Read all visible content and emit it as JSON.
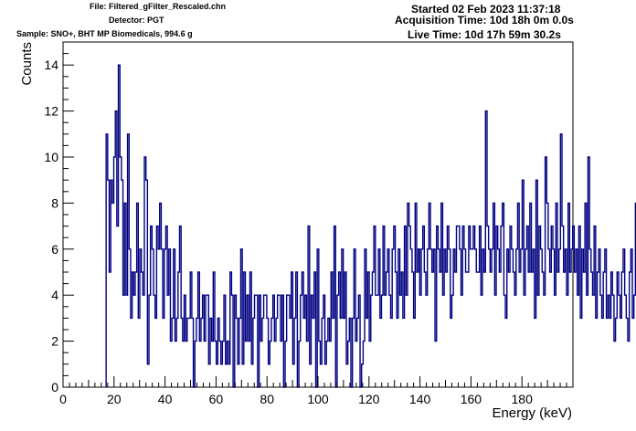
{
  "header": {
    "file": "File: Filtered_gFilter_Rescaled.chn",
    "detector": "Detector: PGT",
    "sample": "Sample: SNO+, BHT MP Biomedicals, 994.6 g",
    "started": "Started 02 Feb 2023 11:37:18",
    "acquisition": "Acquisition Time: 10d 18h 0m 0.0s",
    "live": "Live Time: 10d 17h 59m 30.2s"
  },
  "chart_data": {
    "type": "histogram",
    "xlabel": "Energy (keV)",
    "ylabel": "Counts",
    "xlim": [
      0,
      200
    ],
    "ylim": [
      0,
      15
    ],
    "xticks": [
      0,
      20,
      40,
      60,
      80,
      100,
      120,
      140,
      160,
      180
    ],
    "yticks": [
      0,
      2,
      4,
      6,
      8,
      10,
      12,
      14
    ],
    "line_color": "#000080",
    "x_start": 16.9,
    "bin_width": 0.6,
    "values": [
      11,
      9,
      5,
      9,
      8,
      10,
      12,
      7,
      14,
      10,
      9,
      4,
      8,
      4,
      11,
      6,
      3,
      5,
      4,
      5,
      8,
      3,
      6,
      5,
      4,
      10,
      9,
      1,
      4,
      7,
      6,
      4,
      3,
      7,
      6,
      8,
      6,
      3,
      6,
      7,
      4,
      6,
      2,
      3,
      6,
      2,
      3,
      5,
      7,
      3,
      2,
      4,
      2,
      3,
      3,
      5,
      3,
      0,
      2,
      3,
      5,
      2,
      3,
      4,
      2,
      4,
      4,
      1,
      3,
      2,
      5,
      2,
      1,
      3,
      2,
      1,
      2,
      4,
      1,
      2,
      1,
      5,
      4,
      0,
      4,
      3,
      1,
      3,
      6,
      1,
      5,
      2,
      4,
      2,
      5,
      1,
      3,
      4,
      4,
      0,
      4,
      2,
      3,
      4,
      4,
      3,
      1,
      2,
      3,
      4,
      2,
      3,
      4,
      4,
      2,
      4,
      0,
      2,
      4,
      4,
      3,
      5,
      1,
      3,
      5,
      0,
      2,
      4,
      5,
      3,
      4,
      2,
      7,
      1,
      4,
      3,
      5,
      0,
      6,
      2,
      1,
      3,
      4,
      1,
      2,
      3,
      2,
      5,
      3,
      7,
      0,
      4,
      5,
      3,
      6,
      3,
      5,
      1,
      2,
      3,
      0,
      3,
      6,
      2,
      3,
      4,
      0,
      1,
      2,
      6,
      3,
      5,
      2,
      4,
      5,
      7,
      4,
      4,
      6,
      3,
      4,
      7,
      4,
      5,
      6,
      4,
      3,
      6,
      7,
      5,
      3,
      6,
      4,
      5,
      3,
      7,
      4,
      8,
      7,
      6,
      5,
      3,
      8,
      5,
      6,
      4,
      6,
      7,
      5,
      4,
      6,
      8,
      6,
      5,
      6,
      2,
      7,
      6,
      5,
      8,
      4,
      6,
      5,
      7,
      6,
      3,
      4,
      6,
      5,
      7,
      7,
      6,
      4,
      7,
      6,
      5,
      5,
      7,
      6,
      6,
      7,
      6,
      5,
      5,
      7,
      4,
      6,
      5,
      12,
      7,
      6,
      5,
      6,
      8,
      4,
      7,
      6,
      5,
      7,
      8,
      4,
      3,
      6,
      5,
      7,
      6,
      5,
      4,
      6,
      8,
      5,
      6,
      9,
      4,
      6,
      7,
      5,
      8,
      5,
      6,
      3,
      9,
      4,
      7,
      6,
      5,
      4,
      10,
      8,
      6,
      5,
      7,
      6,
      4,
      8,
      5,
      6,
      11,
      7,
      5,
      6,
      4,
      8,
      5,
      6,
      7,
      5,
      6,
      4,
      7,
      3,
      6,
      5,
      8,
      4,
      10,
      6,
      5,
      4,
      7,
      3,
      5,
      6,
      4,
      3,
      5,
      6,
      3,
      4,
      3,
      5,
      4,
      2,
      3,
      5,
      4,
      3,
      5,
      6,
      4,
      3,
      2,
      5,
      6,
      3,
      4,
      8,
      2,
      5,
      3,
      4,
      2,
      5,
      1,
      3,
      3,
      2,
      4,
      2,
      6,
      3,
      2,
      1,
      3,
      4,
      2,
      5,
      0,
      3,
      1,
      4,
      2,
      3,
      4,
      2,
      3,
      4,
      2,
      3,
      1,
      4,
      3,
      2,
      3,
      4,
      0,
      3,
      2,
      4,
      3,
      2,
      3,
      4,
      3
    ]
  }
}
